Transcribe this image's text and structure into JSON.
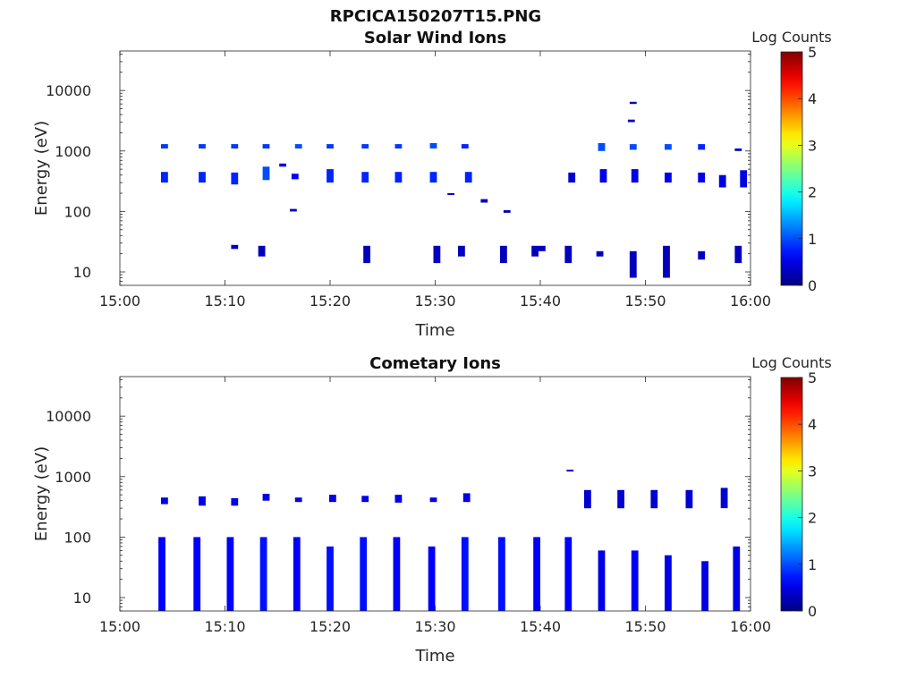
{
  "figure_title": "RPCICA150207T15.PNG",
  "chart_data": [
    {
      "type": "heatmap",
      "title": "Solar Wind Ions",
      "xlabel": "Time",
      "ylabel": "Energy (eV)",
      "y_scale": "log",
      "ylim": [
        6,
        45000
      ],
      "xlim": [
        "15:00",
        "16:00"
      ],
      "x_ticks": [
        "15:00",
        "15:10",
        "15:20",
        "15:30",
        "15:40",
        "15:50",
        "16:00"
      ],
      "y_ticks": [
        "10",
        "100",
        "1000",
        "10000"
      ],
      "colorbar": {
        "label": "Log Counts",
        "min": 0,
        "max": 5,
        "ticks": [
          "0",
          "1",
          "2",
          "3",
          "4",
          "5"
        ],
        "colormap": "jet"
      },
      "grid": false,
      "cells": [
        [
          "15:04:15",
          1100,
          1300,
          0.9
        ],
        [
          "15:07:50",
          1100,
          1300,
          0.9
        ],
        [
          "15:10:55",
          1100,
          1300,
          0.9
        ],
        [
          "15:13:55",
          1100,
          1300,
          0.9
        ],
        [
          "15:17:00",
          1100,
          1300,
          1.0
        ],
        [
          "15:20:00",
          1100,
          1300,
          0.9
        ],
        [
          "15:23:20",
          1100,
          1300,
          0.9
        ],
        [
          "15:26:30",
          1100,
          1300,
          0.9
        ],
        [
          "15:29:50",
          1100,
          1350,
          1.0
        ],
        [
          "15:32:50",
          1100,
          1300,
          0.8
        ],
        [
          "15:04:15",
          300,
          450,
          0.8
        ],
        [
          "15:07:50",
          300,
          450,
          0.8
        ],
        [
          "15:10:55",
          280,
          440,
          0.8
        ],
        [
          "15:13:55",
          330,
          550,
          1.0
        ],
        [
          "15:16:40",
          340,
          420,
          0.6
        ],
        [
          "15:20:00",
          300,
          500,
          0.8
        ],
        [
          "15:23:20",
          300,
          450,
          0.8
        ],
        [
          "15:26:30",
          300,
          450,
          0.8
        ],
        [
          "15:29:50",
          300,
          450,
          0.8
        ],
        [
          "15:33:10",
          300,
          450,
          0.8
        ],
        [
          "15:15:30",
          550,
          620,
          0.5
        ],
        [
          "15:16:30",
          100,
          110,
          0.3
        ],
        [
          "15:31:30",
          190,
          200,
          0.3
        ],
        [
          "15:34:40",
          140,
          160,
          0.3
        ],
        [
          "15:36:50",
          95,
          105,
          0.3
        ],
        [
          "15:10:55",
          24,
          28,
          0.3
        ],
        [
          "15:13:30",
          18,
          27,
          0.3
        ],
        [
          "15:23:30",
          14,
          27,
          0.3
        ],
        [
          "15:30:10",
          14,
          27,
          0.3
        ],
        [
          "15:32:30",
          18,
          27,
          0.3
        ],
        [
          "15:36:30",
          14,
          27,
          0.3
        ],
        [
          "15:39:30",
          18,
          27,
          0.3
        ],
        [
          "15:40:10",
          22,
          27,
          0.3
        ],
        [
          "15:42:40",
          14,
          27,
          0.3
        ],
        [
          "15:45:40",
          18,
          22,
          0.3
        ],
        [
          "15:48:50",
          8,
          22,
          0.3
        ],
        [
          "15:52:00",
          8,
          27,
          0.3
        ],
        [
          "15:55:20",
          16,
          22,
          0.3
        ],
        [
          "15:58:50",
          14,
          27,
          0.3
        ],
        [
          "15:45:50",
          1000,
          1350,
          1.0
        ],
        [
          "15:48:50",
          1050,
          1300,
          1.0
        ],
        [
          "15:52:10",
          1050,
          1300,
          1.0
        ],
        [
          "15:55:20",
          1050,
          1300,
          0.8
        ],
        [
          "15:58:50",
          1000,
          1100,
          0.3
        ],
        [
          "15:48:50",
          6000,
          6500,
          0.3
        ],
        [
          "15:48:40",
          3000,
          3300,
          0.3
        ],
        [
          "15:43:00",
          300,
          440,
          0.4
        ],
        [
          "15:46:00",
          300,
          500,
          0.5
        ],
        [
          "15:49:00",
          300,
          500,
          0.5
        ],
        [
          "15:52:10",
          300,
          440,
          0.5
        ],
        [
          "15:55:20",
          300,
          440,
          0.5
        ],
        [
          "15:57:20",
          250,
          400,
          0.5
        ],
        [
          "15:59:20",
          250,
          480,
          0.5
        ]
      ]
    },
    {
      "type": "heatmap",
      "title": "Cometary Ions",
      "xlabel": "Time",
      "ylabel": "Energy (eV)",
      "y_scale": "log",
      "ylim": [
        6,
        45000
      ],
      "xlim": [
        "15:00",
        "16:00"
      ],
      "x_ticks": [
        "15:00",
        "15:10",
        "15:20",
        "15:30",
        "15:40",
        "15:50",
        "16:00"
      ],
      "y_ticks": [
        "10",
        "100",
        "1000",
        "10000"
      ],
      "colorbar": {
        "label": "Log Counts",
        "min": 0,
        "max": 5,
        "ticks": [
          "0",
          "1",
          "2",
          "3",
          "4",
          "5"
        ],
        "colormap": "jet"
      },
      "grid": false,
      "cells": [
        [
          "15:04:15",
          350,
          450,
          0.5
        ],
        [
          "15:07:50",
          330,
          470,
          0.5
        ],
        [
          "15:10:55",
          330,
          440,
          0.5
        ],
        [
          "15:13:55",
          400,
          520,
          0.5
        ],
        [
          "15:17:00",
          380,
          450,
          0.5
        ],
        [
          "15:20:15",
          380,
          500,
          0.5
        ],
        [
          "15:23:20",
          380,
          480,
          0.5
        ],
        [
          "15:26:30",
          370,
          500,
          0.5
        ],
        [
          "15:29:50",
          380,
          450,
          0.5
        ],
        [
          "15:33:00",
          380,
          530,
          0.5
        ],
        [
          "15:42:50",
          1250,
          1300,
          0.3
        ],
        [
          "15:04:00",
          6,
          100,
          0.6
        ],
        [
          "15:07:20",
          6,
          100,
          0.6
        ],
        [
          "15:10:30",
          6,
          100,
          0.6
        ],
        [
          "15:13:40",
          6,
          100,
          0.7
        ],
        [
          "15:16:50",
          6,
          100,
          0.6
        ],
        [
          "15:20:00",
          6,
          70,
          0.7
        ],
        [
          "15:23:10",
          6,
          100,
          0.7
        ],
        [
          "15:26:20",
          6,
          100,
          0.6
        ],
        [
          "15:29:40",
          6,
          70,
          0.6
        ],
        [
          "15:32:50",
          6,
          100,
          0.7
        ],
        [
          "15:36:20",
          6,
          100,
          0.7
        ],
        [
          "15:39:40",
          6,
          100,
          0.6
        ],
        [
          "15:42:40",
          6,
          100,
          0.6
        ],
        [
          "15:45:50",
          6,
          60,
          0.5
        ],
        [
          "15:49:00",
          6,
          60,
          0.6
        ],
        [
          "15:52:10",
          6,
          50,
          0.5
        ],
        [
          "15:55:40",
          6,
          40,
          0.5
        ],
        [
          "15:58:40",
          6,
          70,
          0.5
        ],
        [
          "15:44:30",
          300,
          600,
          0.4
        ],
        [
          "15:47:40",
          300,
          600,
          0.4
        ],
        [
          "15:50:50",
          300,
          600,
          0.4
        ],
        [
          "15:54:10",
          300,
          600,
          0.4
        ],
        [
          "15:57:30",
          300,
          650,
          0.4
        ]
      ]
    }
  ]
}
